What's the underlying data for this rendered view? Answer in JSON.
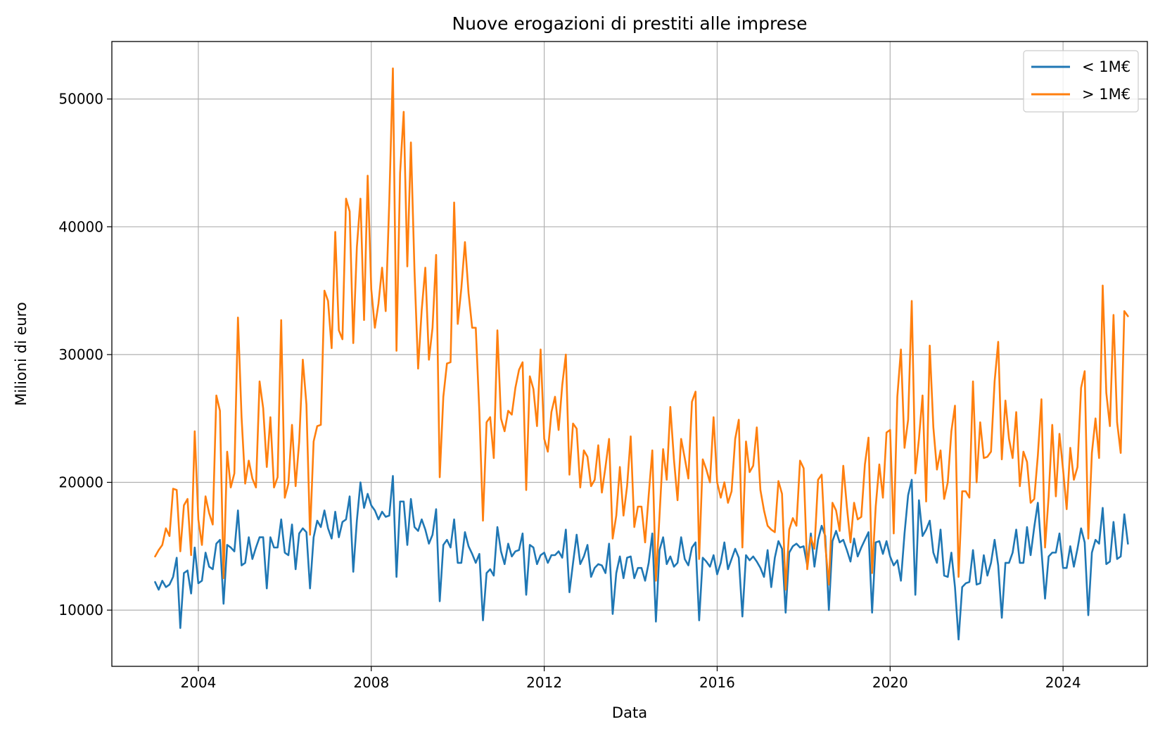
{
  "chart_data": {
    "type": "line",
    "title": "Nuove erogazioni di prestiti alle imprese",
    "xlabel": "Data",
    "ylabel": "Milioni di euro",
    "x_start": "2003-01",
    "x_frequency": "monthly",
    "xlim": [
      2002.0,
      2025.95
    ],
    "ylim": [
      5600,
      54500
    ],
    "x_ticks": [
      2004,
      2008,
      2012,
      2016,
      2020,
      2024
    ],
    "y_ticks": [
      10000,
      20000,
      30000,
      40000,
      50000
    ],
    "grid": true,
    "legend_position": "top-right",
    "series": [
      {
        "name": "< 1M€",
        "color": "#1f77b4",
        "values": [
          12200,
          11600,
          12300,
          11800,
          12000,
          12600,
          14100,
          8600,
          12900,
          13100,
          11300,
          14900,
          12100,
          12300,
          14500,
          13400,
          13200,
          15200,
          15500,
          10500,
          15100,
          14900,
          14600,
          17800,
          13500,
          13700,
          15700,
          14000,
          14900,
          15700,
          15700,
          11700,
          15700,
          14900,
          14900,
          17100,
          14500,
          14300,
          16700,
          13200,
          16000,
          16400,
          16100,
          11700,
          15700,
          17000,
          16500,
          17800,
          16400,
          15600,
          17700,
          15700,
          16900,
          17100,
          18900,
          13000,
          17000,
          20000,
          18000,
          19100,
          18200,
          17800,
          17100,
          17700,
          17300,
          17400,
          20500,
          12600,
          18500,
          18500,
          15100,
          18700,
          16500,
          16200,
          17100,
          16300,
          15200,
          15900,
          17900,
          10700,
          15100,
          15500,
          14900,
          17100,
          13700,
          13700,
          16100,
          15000,
          14400,
          13700,
          14400,
          9200,
          12900,
          13200,
          12700,
          16500,
          14600,
          13600,
          15200,
          14200,
          14600,
          14700,
          16000,
          11200,
          15100,
          14900,
          13600,
          14300,
          14500,
          13700,
          14300,
          14300,
          14600,
          14100,
          16300,
          11400,
          13700,
          15900,
          13600,
          14200,
          15100,
          12600,
          13300,
          13600,
          13500,
          12900,
          15200,
          9700,
          12900,
          14200,
          12500,
          14100,
          14200,
          12500,
          13300,
          13300,
          12300,
          13700,
          16000,
          9100,
          14700,
          15700,
          13600,
          14200,
          13400,
          13700,
          15700,
          14000,
          13500,
          14900,
          15300,
          9200,
          14100,
          13800,
          13400,
          14300,
          12800,
          13700,
          15300,
          13200,
          14000,
          14800,
          14100,
          9500,
          14300,
          13900,
          14200,
          13800,
          13300,
          12600,
          14700,
          11800,
          14100,
          15400,
          14800,
          9800,
          14500,
          15000,
          15200,
          14900,
          15000,
          13500,
          16000,
          13400,
          15500,
          16600,
          15800,
          10000,
          15400,
          16200,
          15300,
          15500,
          14700,
          13800,
          15600,
          14200,
          14900,
          15500,
          16100,
          9800,
          15300,
          15400,
          14400,
          15400,
          14200,
          13500,
          13900,
          12300,
          16000,
          19000,
          20200,
          11200,
          18600,
          15800,
          16300,
          17000,
          14500,
          13700,
          16300,
          12700,
          12600,
          14500,
          11800,
          7700,
          11800,
          12100,
          12200,
          14700,
          12000,
          12100,
          14300,
          12700,
          13700,
          15500,
          13500,
          9400,
          13700,
          13700,
          14500,
          16300,
          13700,
          13700,
          16500,
          14300,
          16500,
          18400,
          14700,
          10900,
          14200,
          14500,
          14500,
          16000,
          13300,
          13300,
          15000,
          13400,
          14800,
          16400,
          15300,
          9600,
          14500,
          15500,
          15200,
          18000,
          13600,
          13800,
          16900,
          14000,
          14200,
          17500,
          15200
        ]
      },
      {
        "name": "> 1M€",
        "color": "#ff7f0e",
        "values": [
          14200,
          14700,
          15100,
          16400,
          15800,
          19500,
          19400,
          14600,
          18200,
          18700,
          14300,
          24000,
          17100,
          15100,
          18900,
          17600,
          16700,
          26800,
          25600,
          12500,
          22400,
          19600,
          20700,
          32900,
          25100,
          19900,
          21700,
          20300,
          19600,
          27900,
          25800,
          21200,
          25100,
          19600,
          20400,
          32700,
          18800,
          19900,
          24500,
          19700,
          23200,
          29600,
          26100,
          15900,
          23200,
          24400,
          24500,
          35000,
          34200,
          30500,
          39600,
          31900,
          31200,
          42200,
          41200,
          30900,
          38400,
          42200,
          32700,
          44000,
          35100,
          32100,
          34000,
          36800,
          33400,
          42000,
          52400,
          30300,
          44200,
          49000,
          36900,
          46600,
          36500,
          28900,
          33500,
          36800,
          29600,
          32100,
          37800,
          20400,
          26700,
          29300,
          29400,
          41900,
          32400,
          35200,
          38800,
          34800,
          32100,
          32100,
          25500,
          17000,
          24700,
          25100,
          21900,
          31900,
          25000,
          24000,
          25600,
          25300,
          27400,
          28800,
          29400,
          19400,
          28300,
          27300,
          24400,
          30400,
          23400,
          22400,
          25500,
          26700,
          24100,
          27600,
          30000,
          20600,
          24600,
          24200,
          19600,
          22500,
          22000,
          19700,
          20200,
          22900,
          19200,
          21200,
          23400,
          15600,
          17400,
          21200,
          17400,
          19700,
          23600,
          16500,
          18100,
          18100,
          15300,
          19000,
          22500,
          12300,
          17400,
          22600,
          20200,
          25900,
          21800,
          18600,
          23400,
          21900,
          20300,
          26300,
          27100,
          14000,
          21800,
          21000,
          20000,
          25100,
          20000,
          18800,
          20000,
          18400,
          19300,
          23400,
          24900,
          14900,
          23200,
          20800,
          21300,
          24300,
          19400,
          17800,
          16600,
          16300,
          16100,
          20100,
          19100,
          11600,
          16300,
          17200,
          16600,
          21700,
          21100,
          13200,
          15700,
          14800,
          20200,
          20600,
          15100,
          12000,
          18400,
          17800,
          16200,
          21300,
          18100,
          15300,
          18400,
          17100,
          17300,
          21400,
          23500,
          12900,
          18100,
          21400,
          18800,
          23900,
          24100,
          16000,
          26700,
          30400,
          22700,
          24900,
          34200,
          20700,
          23400,
          26800,
          18500,
          30700,
          24300,
          21000,
          22500,
          18700,
          20000,
          24000,
          26000,
          12600,
          19300,
          19300,
          18800,
          27900,
          20000,
          24700,
          21900,
          22000,
          22400,
          27900,
          31000,
          21800,
          26400,
          23400,
          21900,
          25500,
          19700,
          22400,
          21600,
          18400,
          18700,
          22100,
          26500,
          14900,
          18900,
          24500,
          18900,
          23800,
          21000,
          17900,
          22700,
          20200,
          21200,
          27400,
          28700,
          15600,
          22300,
          25000,
          21900,
          35400,
          27000,
          24400,
          33100,
          24700,
          22300,
          33400,
          33000
        ]
      }
    ]
  }
}
